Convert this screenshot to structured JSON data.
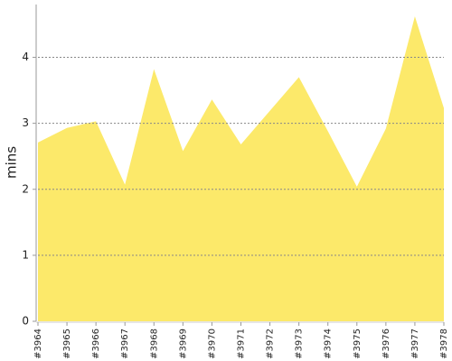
{
  "chart_data": {
    "type": "area",
    "ylabel": "mins",
    "categories": [
      "#3964",
      "#3965",
      "#3966",
      "#3967",
      "#3968",
      "#3969",
      "#3970",
      "#3971",
      "#3972",
      "#3973",
      "#3974",
      "#3975",
      "#3976",
      "#3977",
      "#3978"
    ],
    "values": [
      2.71,
      2.93,
      3.03,
      2.07,
      3.82,
      2.58,
      3.36,
      2.68,
      3.19,
      3.7,
      2.88,
      2.04,
      2.92,
      4.62,
      3.23
    ],
    "color": "#fce96a",
    "ylim": [
      0,
      4.8
    ],
    "yticks": [
      0,
      1,
      2,
      3,
      4
    ],
    "grid": true
  }
}
